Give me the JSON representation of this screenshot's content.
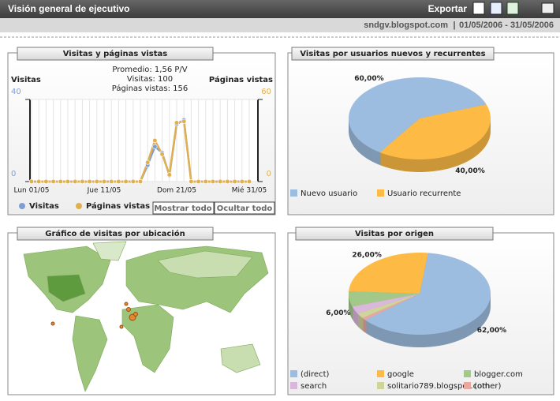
{
  "header": {
    "title": "Visión general de ejecutivo",
    "export": "Exportar",
    "site": "sndgv.blogspot.com",
    "separator": "|",
    "date_range": "01/05/2006 - 31/05/2006"
  },
  "controls": {
    "show_all": "Mostrar todo",
    "hide_all": "Ocultar todo"
  },
  "map": {
    "title": "Gráfico de visitas por ubicación"
  },
  "chart_data": [
    {
      "type": "line",
      "title": "Visitas y páginas vistas",
      "annotations": [
        "Promedio: 1,56 P/V",
        "Visitas: 100",
        "Páginas vistas: 156"
      ],
      "ylabel": "Visitas",
      "y2label": "Páginas vistas",
      "categories": [
        "Lun 01/05",
        null,
        null,
        null,
        null,
        null,
        null,
        null,
        null,
        null,
        "Jue 11/05",
        null,
        null,
        null,
        null,
        null,
        null,
        null,
        null,
        null,
        "Dom 21/05",
        null,
        null,
        null,
        null,
        null,
        null,
        null,
        null,
        null,
        "Mié 31/05"
      ],
      "series": [
        {
          "name": "Visitas",
          "color": "#7f9fd4",
          "values": [
            0,
            0,
            0,
            0,
            0,
            0,
            0,
            0,
            0,
            0,
            0,
            0,
            0,
            0,
            0,
            0,
            8,
            17,
            14,
            3,
            28,
            30,
            0,
            0,
            0,
            0,
            0,
            0,
            0,
            0,
            0
          ]
        },
        {
          "name": "Páginas vistas",
          "color": "#e0b050",
          "axis": "y2",
          "values": [
            0,
            0,
            0,
            0,
            0,
            0,
            0,
            0,
            0,
            0,
            0,
            0,
            0,
            0,
            0,
            0,
            14,
            30,
            20,
            5,
            43,
            44,
            0,
            0,
            0,
            0,
            0,
            0,
            0,
            0,
            0
          ]
        }
      ],
      "ylim": [
        0,
        40
      ],
      "yticks": [
        0,
        40
      ],
      "y2lim": [
        0,
        60
      ],
      "y2ticks": [
        0,
        60
      ],
      "grid": true
    },
    {
      "type": "pie",
      "title": "Visitas por usuarios nuevos y recurrentes",
      "categories": [
        "Nuevo usuario",
        "Usuario recurrente"
      ],
      "values": [
        60,
        40
      ],
      "value_labels": [
        "60,00%",
        "40,00%"
      ],
      "colors": [
        "#9dbde0",
        "#fdbb45"
      ]
    },
    {
      "type": "pie",
      "title": "Visitas por origen",
      "categories": [
        "(direct)",
        "google",
        "blogger.com",
        "search",
        "solitario789.blogspot.com",
        "(other)"
      ],
      "values": [
        62,
        26,
        6,
        3,
        2,
        1
      ],
      "value_labels": [
        "62,00%",
        "26,00%",
        "6,00%",
        null,
        null,
        null
      ],
      "colors": [
        "#9dbde0",
        "#fdbb45",
        "#a3c98a",
        "#d9b8dc",
        "#cfd49a",
        "#e8a8a0"
      ]
    }
  ]
}
